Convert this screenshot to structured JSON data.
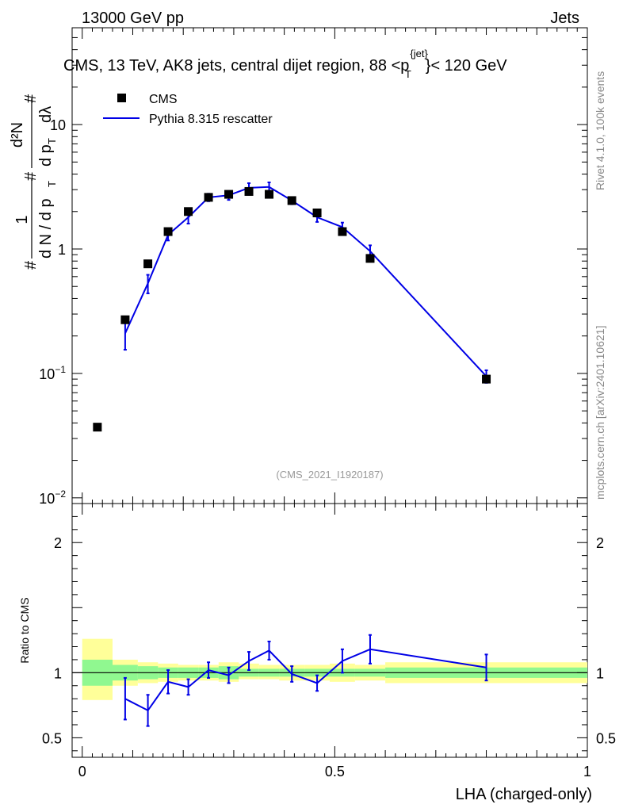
{
  "header": {
    "left": "13000 GeV pp",
    "right": "Jets"
  },
  "main_title": {
    "prefix": "CMS, 13 TeV, AK8 jets, central dijet region, 88 <p",
    "sup": "{jet}",
    "sub": "T",
    "suffix": "}< 120 GeV"
  },
  "legend": {
    "items": [
      {
        "name": "CMS",
        "symbol": "square",
        "color": "#000000"
      },
      {
        "name": "Pythia 8.315 rescatter",
        "symbol": "line",
        "color": "#0000e6"
      }
    ]
  },
  "y_label": {
    "hash1": "#",
    "one": "1",
    "dN": "d N / d p",
    "T1": "T",
    "hash2": "#",
    "d2N": "d²N",
    "dpt": "d p",
    "T2": "T",
    "dl": "dλ",
    "hash3": "#"
  },
  "watermark": "(CMS_2021_I1920187)",
  "side": {
    "rivet": "Rivet 4.1.0,  100k events",
    "site": "mcplots.cern.ch [arXiv:2401.10621]"
  },
  "colors": {
    "mc": "#0000e6",
    "band_inner": "#90f890",
    "band_outer": "#ffff99"
  },
  "chart_data": [
    {
      "type": "scatter",
      "title": "CMS, 13 TeV, AK8 jets, central dijet region",
      "yscale": "log",
      "ylim": [
        0.009,
        60
      ],
      "xlim": [
        -0.02,
        1.0
      ],
      "y_ticks": [
        {
          "v": 0.01,
          "base": "10",
          "exp": "−2"
        },
        {
          "v": 0.1,
          "base": "10",
          "exp": "−1"
        },
        {
          "v": 1,
          "base": "1",
          "exp": ""
        },
        {
          "v": 10,
          "base": "10",
          "exp": ""
        }
      ],
      "series": [
        {
          "name": "CMS",
          "x": [
            0.03,
            0.085,
            0.13,
            0.17,
            0.21,
            0.25,
            0.29,
            0.33,
            0.37,
            0.415,
            0.465,
            0.515,
            0.57,
            0.8
          ],
          "y": [
            0.037,
            0.27,
            0.76,
            1.38,
            2.0,
            2.6,
            2.75,
            2.9,
            2.75,
            2.45,
            1.95,
            1.38,
            0.84,
            0.09
          ]
        },
        {
          "name": "Pythia 8.315 rescatter",
          "x": [
            0.085,
            0.13,
            0.17,
            0.21,
            0.25,
            0.29,
            0.33,
            0.37,
            0.415,
            0.465,
            0.515,
            0.57,
            0.8
          ],
          "y": [
            0.21,
            0.53,
            1.3,
            1.8,
            2.6,
            2.7,
            3.1,
            3.15,
            2.45,
            1.8,
            1.5,
            0.96,
            0.095
          ],
          "err": [
            0.055,
            0.09,
            0.13,
            0.2,
            0.18,
            0.22,
            0.28,
            0.28,
            0.16,
            0.15,
            0.13,
            0.11,
            0.011
          ]
        }
      ]
    },
    {
      "type": "line",
      "ylabel": "Ratio to CMS",
      "xlabel": "LHA (charged-only)",
      "ylim": [
        0.35,
        2.3
      ],
      "xlim": [
        -0.02,
        1.0
      ],
      "y_ticks": [
        "0.5",
        "1",
        "2"
      ],
      "y_tick_values": [
        0.5,
        1,
        2
      ],
      "x_ticks": [
        "0",
        "0.5",
        "1"
      ],
      "x_tick_values": [
        0,
        0.5,
        1
      ],
      "reference": 1,
      "ratio": {
        "x": [
          0.085,
          0.13,
          0.17,
          0.21,
          0.25,
          0.29,
          0.33,
          0.37,
          0.415,
          0.465,
          0.515,
          0.57,
          0.8
        ],
        "y": [
          0.8,
          0.71,
          0.93,
          0.89,
          1.02,
          0.98,
          1.09,
          1.17,
          0.99,
          0.92,
          1.09,
          1.18,
          1.04
        ],
        "err": [
          0.16,
          0.12,
          0.09,
          0.06,
          0.06,
          0.06,
          0.07,
          0.07,
          0.06,
          0.06,
          0.09,
          0.11,
          0.1
        ]
      },
      "bands": [
        {
          "x0": 0.0,
          "x1": 0.06,
          "inner": [
            0.9,
            1.1
          ],
          "outer": [
            0.79,
            1.26
          ]
        },
        {
          "x0": 0.06,
          "x1": 0.11,
          "inner": [
            0.94,
            1.06
          ],
          "outer": [
            0.9,
            1.1
          ]
        },
        {
          "x0": 0.11,
          "x1": 0.15,
          "inner": [
            0.95,
            1.05
          ],
          "outer": [
            0.92,
            1.08
          ]
        },
        {
          "x0": 0.15,
          "x1": 0.19,
          "inner": [
            0.96,
            1.04
          ],
          "outer": [
            0.93,
            1.07
          ]
        },
        {
          "x0": 0.19,
          "x1": 0.23,
          "inner": [
            0.96,
            1.04
          ],
          "outer": [
            0.94,
            1.06
          ]
        },
        {
          "x0": 0.23,
          "x1": 0.27,
          "inner": [
            0.96,
            1.04
          ],
          "outer": [
            0.94,
            1.06
          ]
        },
        {
          "x0": 0.27,
          "x1": 0.31,
          "inner": [
            0.95,
            1.05
          ],
          "outer": [
            0.93,
            1.08
          ]
        },
        {
          "x0": 0.31,
          "x1": 0.35,
          "inner": [
            0.97,
            1.03
          ],
          "outer": [
            0.95,
            1.07
          ]
        },
        {
          "x0": 0.35,
          "x1": 0.39,
          "inner": [
            0.97,
            1.03
          ],
          "outer": [
            0.95,
            1.06
          ]
        },
        {
          "x0": 0.39,
          "x1": 0.44,
          "inner": [
            0.97,
            1.03
          ],
          "outer": [
            0.94,
            1.06
          ]
        },
        {
          "x0": 0.44,
          "x1": 0.49,
          "inner": [
            0.97,
            1.03
          ],
          "outer": [
            0.94,
            1.06
          ]
        },
        {
          "x0": 0.49,
          "x1": 0.54,
          "inner": [
            0.97,
            1.03
          ],
          "outer": [
            0.93,
            1.07
          ]
        },
        {
          "x0": 0.54,
          "x1": 0.6,
          "inner": [
            0.97,
            1.03
          ],
          "outer": [
            0.94,
            1.06
          ]
        },
        {
          "x0": 0.6,
          "x1": 1.0,
          "inner": [
            0.96,
            1.04
          ],
          "outer": [
            0.92,
            1.08
          ]
        }
      ]
    }
  ]
}
